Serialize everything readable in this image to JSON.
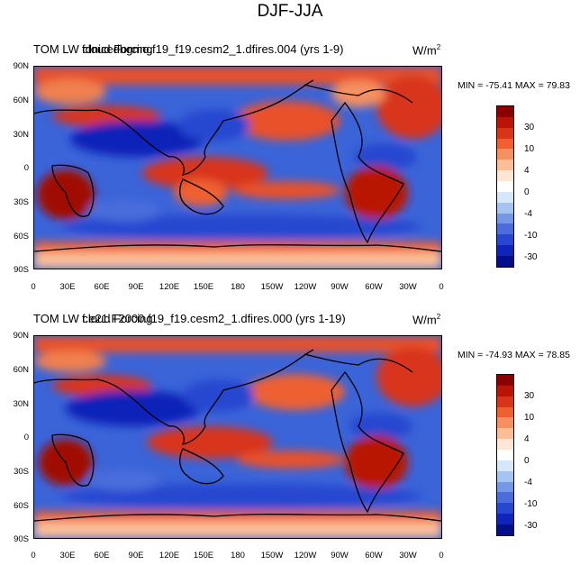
{
  "title": "DJF-JJA",
  "units_base": "W/m",
  "units_exp": "2",
  "panels": [
    {
      "title_a": "TOM LW cloud Forcing",
      "title_b": "fdnicedbgmo.f19_f19.cesm2_1.dfires.004 (yrs 1-9)",
      "min_label": "MIN = -75.41",
      "max_label": "MAX =  79.83"
    },
    {
      "title_a": "TOM LW cloud Forcing",
      "title_b": "f.e21.F2000.f19_f19.cesm2_1.dfires.000 (yrs 1-19)",
      "min_label": "MIN = -74.93",
      "max_label": "MAX =  78.85"
    }
  ],
  "lat_labels": [
    "90N",
    "60N",
    "30N",
    "0",
    "30S",
    "60S",
    "90S"
  ],
  "lon_labels": [
    "0",
    "30E",
    "60E",
    "90E",
    "120E",
    "150E",
    "180",
    "150W",
    "120W",
    "90W",
    "60W",
    "30W",
    "0"
  ],
  "colorbar": {
    "labels": [
      "30",
      "10",
      "4",
      "0",
      "-4",
      "-10",
      "-30"
    ],
    "colors": [
      "#8a0000",
      "#b91405",
      "#d8341a",
      "#ee6030",
      "#f59060",
      "#fbbf98",
      "#fde6d4",
      "#ffffff",
      "#d6e6fb",
      "#a6c4f2",
      "#7498e6",
      "#4a6ddb",
      "#2847d0",
      "#0f24b8",
      "#020e8c"
    ]
  }
}
